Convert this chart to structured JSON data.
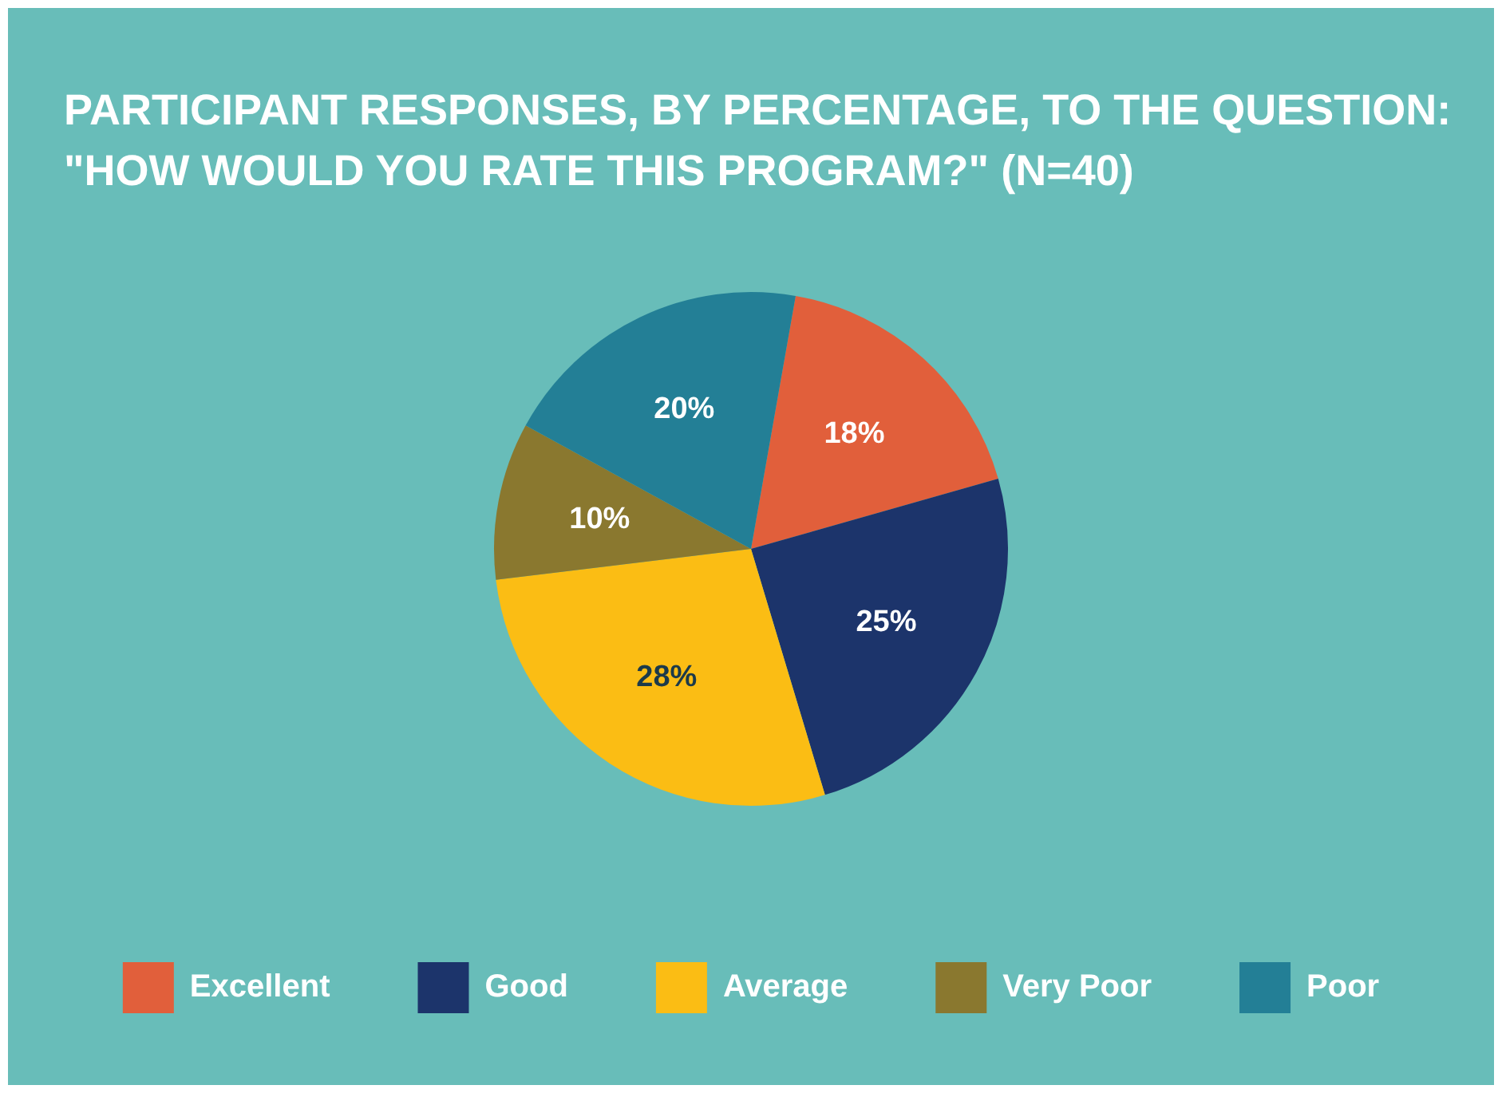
{
  "chart_data": {
    "type": "pie",
    "title": "PARTICIPANT RESPONSES, BY PERCENTAGE, TO THE QUESTION: \"HOW WOULD YOU RATE THIS PROGRAM?\" (N=40)",
    "categories": [
      "Excellent",
      "Good",
      "Average",
      "Very Poor",
      "Poor"
    ],
    "values": [
      18,
      25,
      28,
      10,
      20
    ],
    "colors": [
      "#e15f3b",
      "#1c346b",
      "#fbbd14",
      "#8a782f",
      "#237f96"
    ],
    "value_labels": [
      "18%",
      "25%",
      "28%",
      "10%",
      "20%"
    ],
    "legend": "bottom"
  }
}
